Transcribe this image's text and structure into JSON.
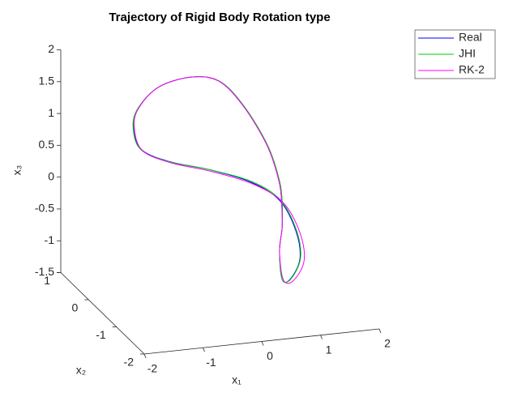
{
  "chart_data": {
    "type": "line3d",
    "title": "Trajectory of Rigid Body Rotation type",
    "xlabel": "x₁",
    "ylabel": "x₂",
    "zlabel": "x₃",
    "xlim": [
      -2,
      2
    ],
    "ylim": [
      -2,
      1
    ],
    "zlim": [
      -1.5,
      2
    ],
    "xticks": [
      -2,
      -1,
      0,
      1,
      2
    ],
    "yticks": [
      -2,
      -1,
      0,
      1
    ],
    "zticks": [
      -1.5,
      -1,
      -0.5,
      0,
      0.5,
      1,
      1.5,
      2
    ],
    "legend": "top-right",
    "series": [
      {
        "name": "Real",
        "color": "#0000ff",
        "x": [
          1.29,
          1.34,
          1.23,
          0.91,
          0.59,
          0.16,
          -0.44,
          -0.88,
          -1.04,
          -1.0,
          -0.61,
          -0.02,
          0.58,
          0.97,
          1.15,
          1.17,
          1.05,
          1.01,
          1.06,
          1.2,
          1.29
        ],
        "y": [
          0,
          0.2,
          0.4,
          0.6,
          0.8,
          0.9,
          0.8,
          0.6,
          0.4,
          0.2,
          0,
          -0.2,
          -0.4,
          -0.6,
          -0.8,
          -0.9,
          -0.8,
          -0.6,
          -0.4,
          -0.2,
          0
        ],
        "z": [
          -0.36,
          -0.07,
          0.43,
          1.01,
          1.34,
          1.4,
          1.34,
          1.12,
          0.91,
          0.67,
          0.53,
          0.43,
          0.26,
          0.02,
          -0.39,
          -0.79,
          -1.14,
          -1.22,
          -0.87,
          -0.59,
          -0.36
        ]
      },
      {
        "name": "JHI",
        "color": "#00cc00",
        "x": [
          1.3,
          1.35,
          1.24,
          0.92,
          0.6,
          0.16,
          -0.44,
          -0.89,
          -1.05,
          -1.01,
          -0.62,
          -0.02,
          0.59,
          0.98,
          1.16,
          1.18,
          1.06,
          1.01,
          1.06,
          1.2,
          1.3
        ],
        "y": [
          0,
          0.2,
          0.4,
          0.6,
          0.8,
          0.9,
          0.8,
          0.6,
          0.4,
          0.2,
          0,
          -0.2,
          -0.4,
          -0.6,
          -0.8,
          -0.9,
          -0.8,
          -0.6,
          -0.4,
          -0.2,
          0
        ],
        "z": [
          -0.36,
          -0.07,
          0.43,
          1.01,
          1.34,
          1.4,
          1.34,
          1.12,
          0.91,
          0.67,
          0.53,
          0.43,
          0.27,
          0.03,
          -0.38,
          -0.78,
          -1.14,
          -1.22,
          -0.87,
          -0.59,
          -0.36
        ]
      },
      {
        "name": "RK-2",
        "color": "#ff00ff",
        "x": [
          1.29,
          1.34,
          1.23,
          0.91,
          0.59,
          0.16,
          -0.44,
          -0.88,
          -1.03,
          -0.98,
          -0.59,
          0.01,
          0.63,
          1.03,
          1.22,
          1.24,
          1.1,
          1.03,
          1.06,
          1.2,
          1.29
        ],
        "y": [
          0,
          0.2,
          0.4,
          0.6,
          0.8,
          0.9,
          0.8,
          0.6,
          0.4,
          0.2,
          0,
          -0.2,
          -0.4,
          -0.6,
          -0.8,
          -0.9,
          -0.8,
          -0.6,
          -0.4,
          -0.2,
          0
        ],
        "z": [
          -0.36,
          -0.07,
          0.43,
          1.01,
          1.34,
          1.4,
          1.34,
          1.12,
          0.9,
          0.65,
          0.51,
          0.4,
          0.22,
          -0.02,
          -0.43,
          -0.83,
          -1.17,
          -1.23,
          -0.87,
          -0.59,
          -0.36
        ]
      }
    ]
  }
}
